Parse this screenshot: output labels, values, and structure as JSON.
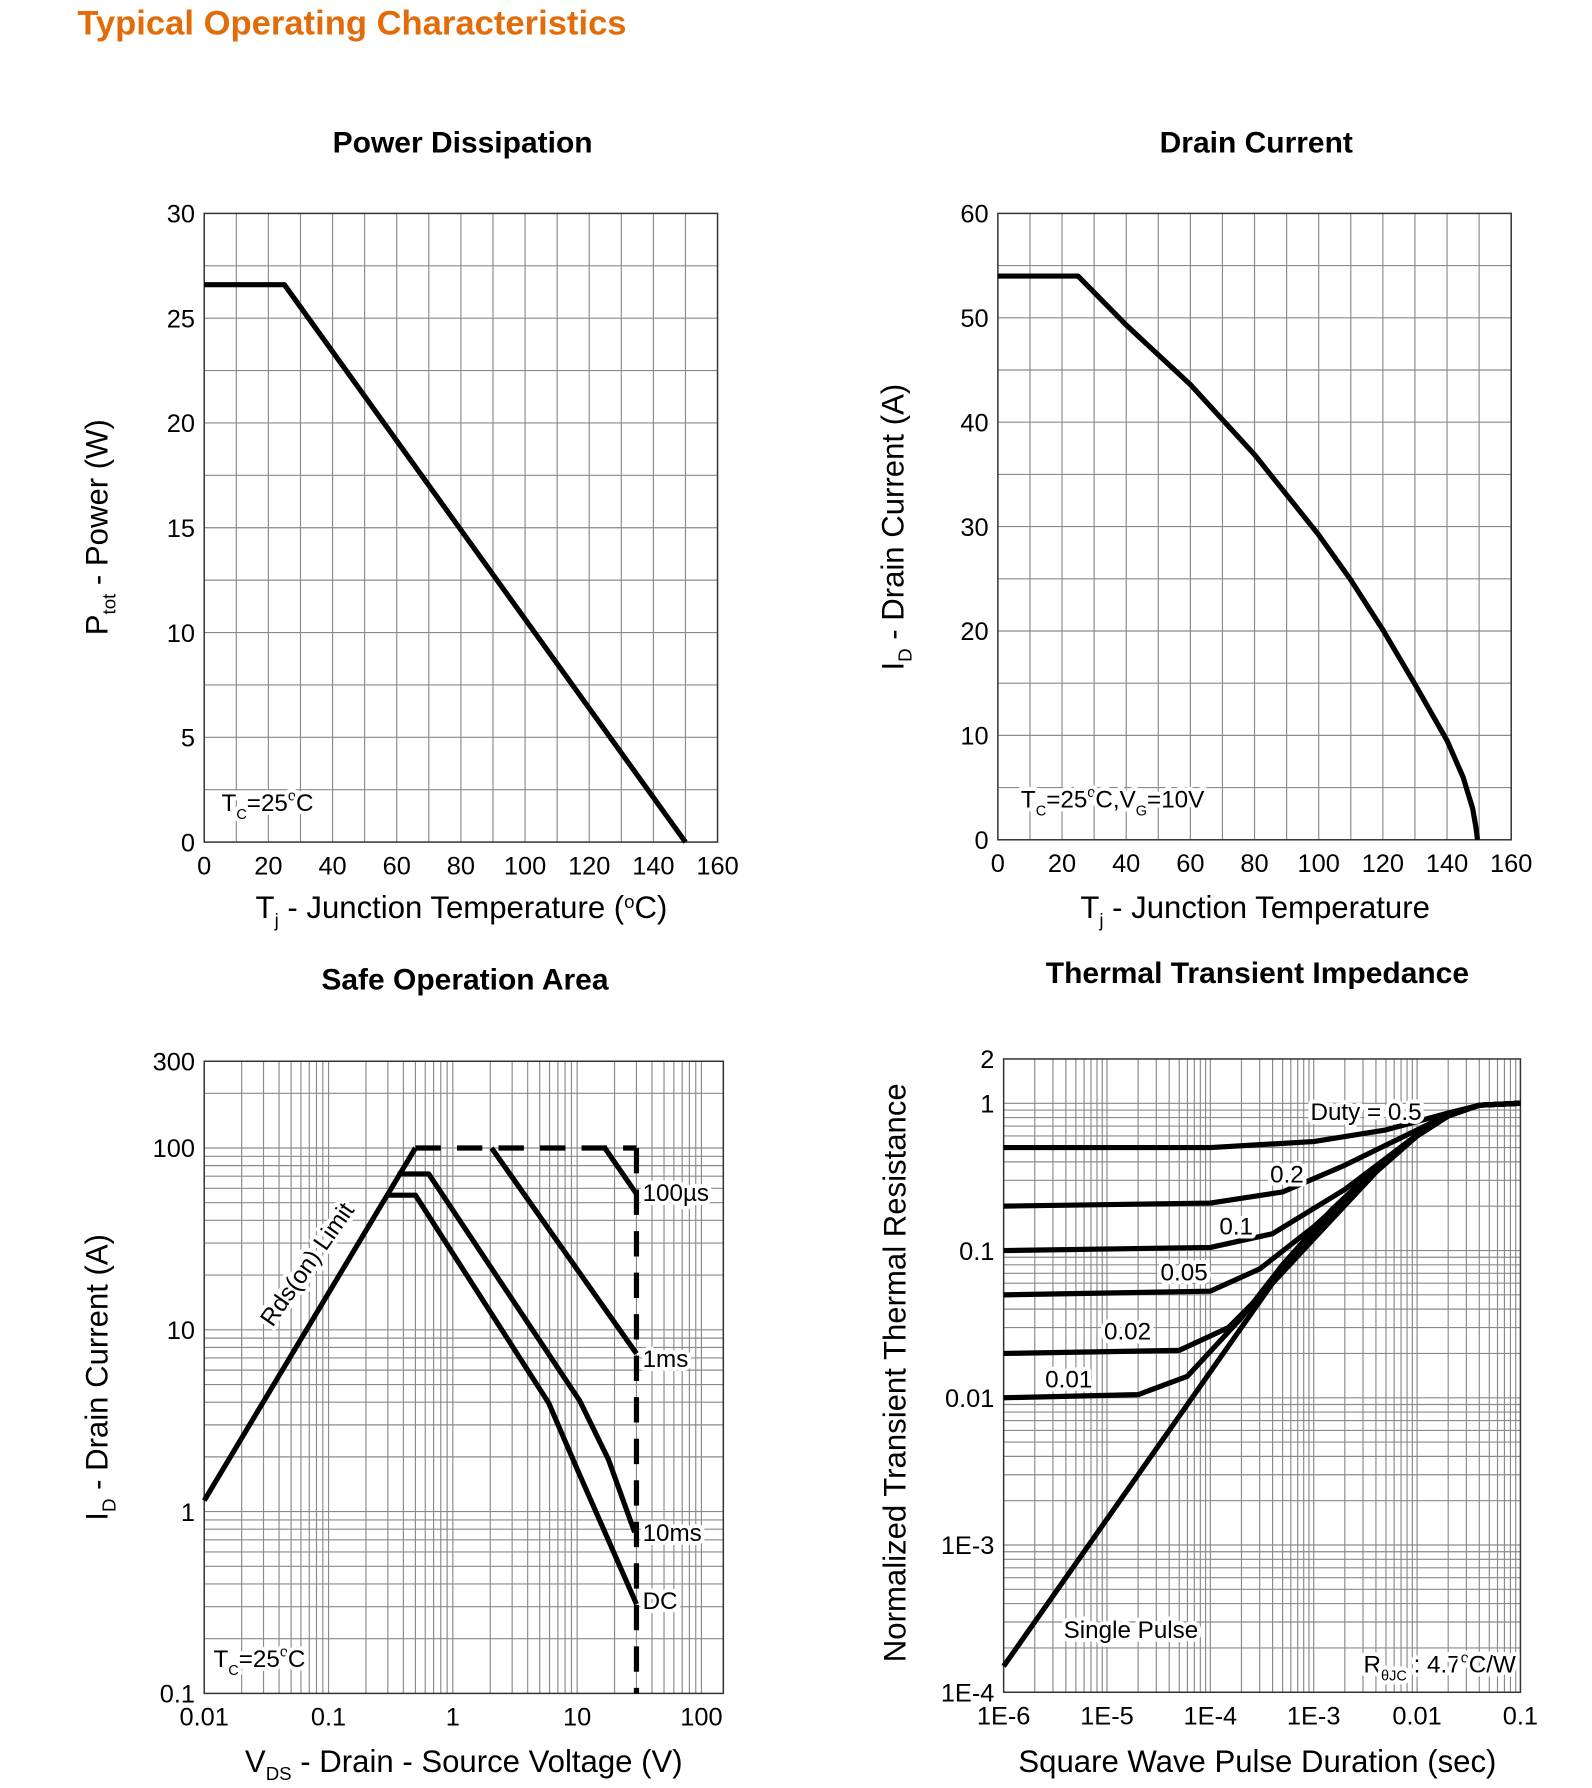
{
  "page_title": "Typical Operating Characteristics",
  "chart_data": [
    {
      "type": "line",
      "title": "Power Dissipation",
      "xlabel": [
        {
          "t": "T"
        },
        {
          "t": "j",
          "sub": true
        },
        {
          "t": " - Junction Temperature ("
        },
        {
          "t": "o",
          "sup": true
        },
        {
          "t": "C)"
        }
      ],
      "ylabel": [
        {
          "t": "P"
        },
        {
          "t": "tot",
          "sub": true
        },
        {
          "t": " - Power (W)"
        }
      ],
      "xscale": "linear",
      "yscale": "linear",
      "xlim": [
        0,
        160
      ],
      "ylim": [
        0,
        30
      ],
      "xticks": [
        "0",
        "20",
        "40",
        "60",
        "80",
        "100",
        "120",
        "140",
        "160"
      ],
      "yticks": [
        "0",
        "5",
        "10",
        "15",
        "20",
        "25",
        "30"
      ],
      "grid": true,
      "annotations": [
        {
          "text": [
            {
              "t": "T"
            },
            {
              "t": "C",
              "sub": true
            },
            {
              "t": "=25"
            },
            {
              "t": "o",
              "sup": true
            },
            {
              "t": "C"
            }
          ]
        }
      ],
      "series": [
        {
          "x": [
            0,
            25,
            150
          ],
          "y": [
            26.6,
            26.6,
            0
          ]
        }
      ]
    },
    {
      "type": "line",
      "title": "Drain Current",
      "xlabel": [
        {
          "t": "T"
        },
        {
          "t": "j",
          "sub": true
        },
        {
          "t": " - Junction Temperature"
        }
      ],
      "ylabel": [
        {
          "t": "I"
        },
        {
          "t": "D",
          "sub": true
        },
        {
          "t": " - Drain Current (A)"
        }
      ],
      "xscale": "linear",
      "yscale": "linear",
      "xlim": [
        0,
        160
      ],
      "ylim": [
        0,
        60
      ],
      "xticks": [
        "0",
        "20",
        "40",
        "60",
        "80",
        "100",
        "120",
        "140",
        "160"
      ],
      "yticks": [
        "0",
        "10",
        "20",
        "30",
        "40",
        "50",
        "60"
      ],
      "grid": true,
      "annotations": [
        {
          "text": [
            {
              "t": "T"
            },
            {
              "t": "C",
              "sub": true
            },
            {
              "t": "=25"
            },
            {
              "t": "o",
              "sup": true
            },
            {
              "t": "C,V"
            },
            {
              "t": "G",
              "sub": true
            },
            {
              "t": "=10V"
            }
          ]
        }
      ],
      "series": [
        {
          "x": [
            0,
            25,
            40,
            60,
            80,
            100,
            110,
            120,
            130,
            140,
            145,
            148,
            149,
            149.5
          ],
          "y": [
            54,
            54,
            49.3,
            43.6,
            36.9,
            29.2,
            24.9,
            20.1,
            14.9,
            9.5,
            6,
            3,
            1.2,
            0
          ]
        }
      ]
    },
    {
      "type": "line",
      "title": "Safe Operation Area",
      "xlabel": [
        {
          "t": "V"
        },
        {
          "t": "DS",
          "sub": true
        },
        {
          "t": " - Drain - Source Voltage (V)"
        }
      ],
      "ylabel": [
        {
          "t": "I"
        },
        {
          "t": "D",
          "sub": true
        },
        {
          "t": " - Drain Current (A)"
        }
      ],
      "xscale": "log",
      "yscale": "log",
      "xlim": [
        0.01,
        150
      ],
      "ylim": [
        0.1,
        300
      ],
      "xticks": [
        "0.01",
        "0.1",
        "1",
        "10",
        "100"
      ],
      "yticks": [
        "0.1",
        "1",
        "10",
        "100",
        "300"
      ],
      "grid": true,
      "annotations": [
        {
          "text": [
            {
              "t": "T"
            },
            {
              "t": "C",
              "sub": true
            },
            {
              "t": "=25"
            },
            {
              "t": "o",
              "sup": true
            },
            {
              "t": "C"
            }
          ]
        }
      ],
      "series": [
        {
          "name": "Rds(on) Limit",
          "x": [
            0.01,
            0.5
          ],
          "y": [
            1.15,
            100
          ]
        },
        {
          "name": "100µs",
          "x": [
            16.7,
            30
          ],
          "y": [
            100,
            56
          ]
        },
        {
          "name": "1ms",
          "x": [
            2.05,
            30
          ],
          "y": [
            100,
            7.4
          ]
        },
        {
          "name": "10ms",
          "x": [
            0.36,
            0.64,
            10.5,
            17.9,
            29
          ],
          "y": [
            72,
            72,
            4.06,
            1.93,
            0.77
          ]
        },
        {
          "name": "DC",
          "x": [
            0.29,
            0.5,
            5.9,
            9.8,
            30
          ],
          "y": [
            55,
            55,
            3.96,
            1.77,
            0.31
          ]
        },
        {
          "x": [
            0.5,
            30
          ],
          "y": [
            100,
            100
          ],
          "dashed": true
        },
        {
          "x": [
            30,
            30
          ],
          "y": [
            100,
            0.1
          ],
          "dashed": true
        }
      ]
    },
    {
      "type": "line",
      "title": "Thermal Transient Impedance",
      "xlabel": [
        {
          "t": "Square Wave Pulse Duration (sec)"
        }
      ],
      "ylabel": [
        {
          "t": "Normalized Transient Thermal Resistance"
        }
      ],
      "xscale": "log",
      "yscale": "log",
      "xlim": [
        1e-06,
        0.1
      ],
      "ylim": [
        0.0001,
        2
      ],
      "xticks": [
        "1E-6",
        "1E-5",
        "1E-4",
        "1E-3",
        "0.01",
        "0.1"
      ],
      "yticks": [
        "1E-4",
        "1E-3",
        "0.01",
        "0.1",
        "1",
        "2"
      ],
      "grid": true,
      "annotations": [
        {
          "text": [
            {
              "t": "R"
            },
            {
              "t": "θJC",
              "sub": true
            },
            {
              "t": " : 4.7"
            },
            {
              "t": "o",
              "sup": true
            },
            {
              "t": "C/W"
            }
          ]
        }
      ],
      "series": [
        {
          "name": "Duty = 0.5",
          "x": [
            1e-06,
            0.0001,
            0.001,
            0.005,
            0.02,
            0.04,
            0.1
          ],
          "y": [
            0.5,
            0.5,
            0.55,
            0.66,
            0.86,
            0.97,
            1
          ]
        },
        {
          "name": "0.2",
          "x": [
            1e-06,
            0.0001,
            0.0005,
            0.002,
            0.01,
            0.02,
            0.04,
            0.1
          ],
          "y": [
            0.2,
            0.21,
            0.25,
            0.38,
            0.66,
            0.84,
            0.97,
            1
          ]
        },
        {
          "name": "0.1",
          "x": [
            1e-06,
            0.0001,
            0.0004,
            0.002,
            0.01,
            0.02,
            0.04,
            0.1
          ],
          "y": [
            0.1,
            0.105,
            0.13,
            0.26,
            0.61,
            0.83,
            0.97,
            1
          ]
        },
        {
          "name": "0.05",
          "x": [
            1e-06,
            0.0001,
            0.0003,
            0.001,
            0.004,
            0.01,
            0.02,
            0.04,
            0.1
          ],
          "y": [
            0.05,
            0.053,
            0.075,
            0.145,
            0.35,
            0.6,
            0.82,
            0.97,
            1
          ]
        },
        {
          "name": "0.02",
          "x": [
            1e-06,
            5e-05,
            0.00015,
            0.0004,
            0.001,
            0.004,
            0.01,
            0.02,
            0.04,
            0.1
          ],
          "y": [
            0.02,
            0.021,
            0.03,
            0.06,
            0.12,
            0.34,
            0.6,
            0.82,
            0.97,
            1
          ]
        },
        {
          "name": "0.01",
          "x": [
            1e-06,
            2e-05,
            6e-05,
            0.0002,
            0.0005,
            0.0015,
            0.005,
            0.01,
            0.02,
            0.04,
            0.1
          ],
          "y": [
            0.01,
            0.0105,
            0.014,
            0.035,
            0.08,
            0.19,
            0.42,
            0.6,
            0.82,
            0.97,
            1
          ]
        },
        {
          "name": "Single Pulse",
          "x": [
            1e-06,
            0.0006,
            0.003,
            0.01,
            0.02,
            0.04,
            0.1
          ],
          "y": [
            0.00015,
            0.09,
            0.3,
            0.6,
            0.82,
            0.97,
            1
          ]
        }
      ]
    }
  ]
}
